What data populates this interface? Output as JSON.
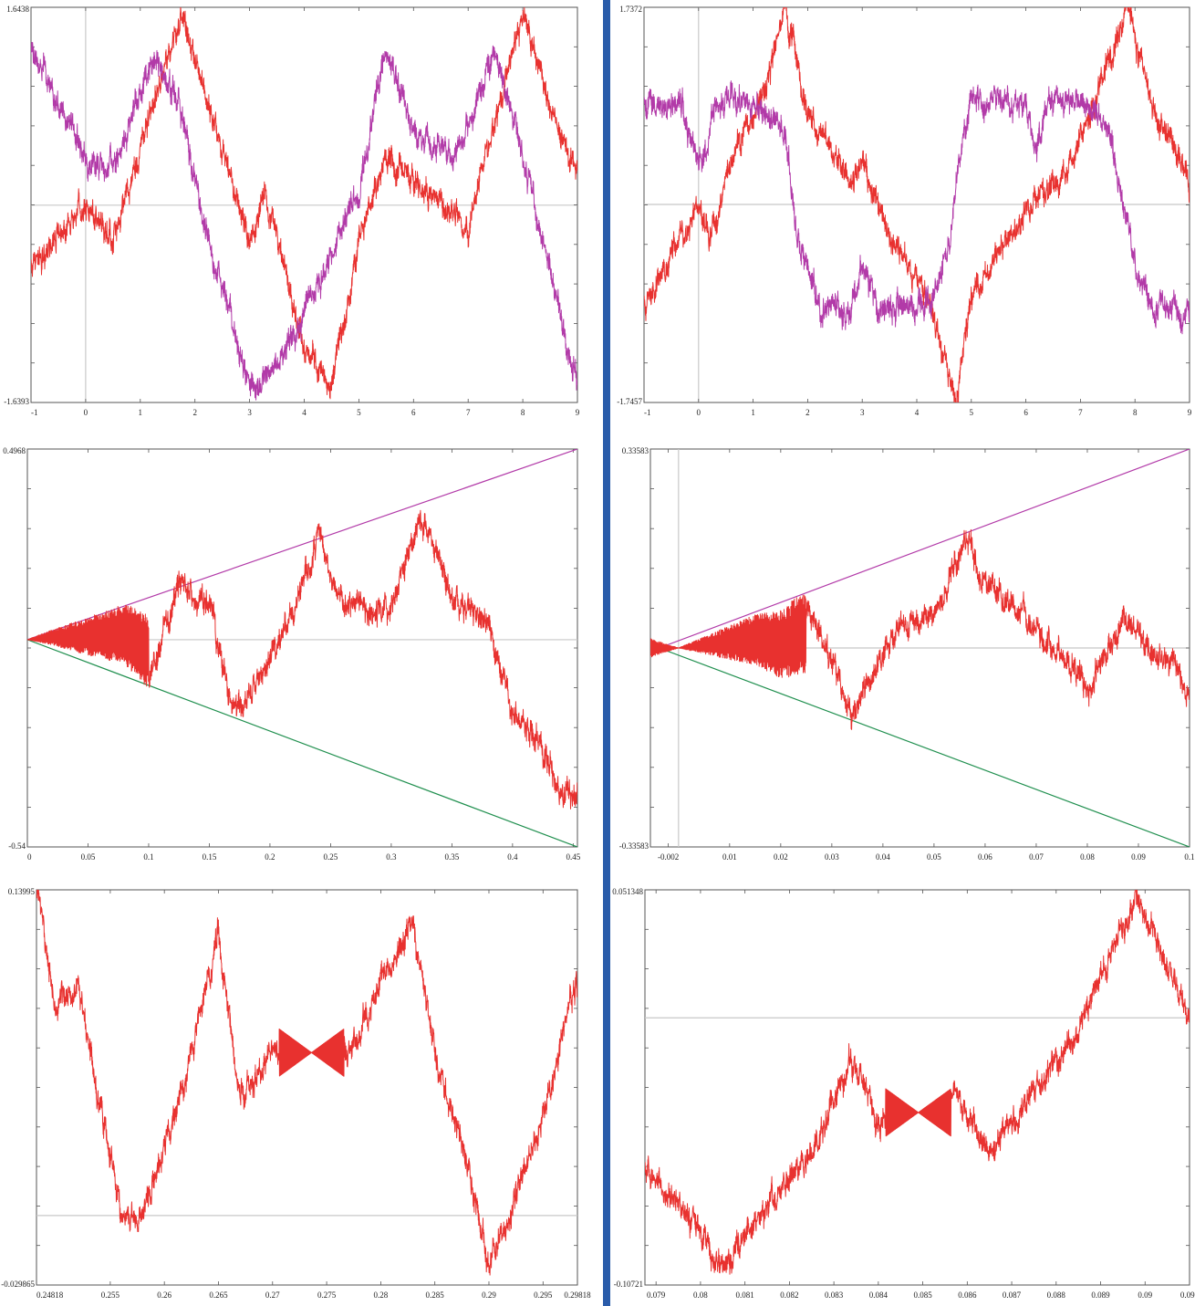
{
  "colors": {
    "accent": "#2a5caa",
    "series_red": "#e8312f",
    "series_magenta": "#b23aa8",
    "series_green": "#1f8f4e",
    "axis_zero": "#c8c8c8"
  },
  "chart_data": [
    {
      "id": "p1",
      "type": "line",
      "title": "",
      "xlabel": "",
      "ylabel": "",
      "xlim": [
        -1,
        9
      ],
      "ylim": [
        -1.6393,
        1.6438
      ],
      "x_ticks": [
        "-1",
        "0",
        "1",
        "2",
        "3",
        "4",
        "5",
        "6",
        "7",
        "8",
        "9"
      ],
      "y_top_label": "1.6438",
      "y_bottom_label": "-1.6393",
      "grid": false,
      "zero_lines": true,
      "series": [
        {
          "color": "#e8312f",
          "style": "fractal",
          "amplitude": 1.55,
          "fine_detail": 0.08,
          "points": [
            [
              -1,
              -0.5
            ],
            [
              0,
              0.0
            ],
            [
              0.5,
              -0.3
            ],
            [
              1.0,
              0.5
            ],
            [
              1.8,
              1.6
            ],
            [
              2.2,
              0.9
            ],
            [
              3.0,
              -0.3
            ],
            [
              3.3,
              0.1
            ],
            [
              4.0,
              -1.2
            ],
            [
              4.5,
              -1.5
            ],
            [
              5.0,
              -0.3
            ],
            [
              5.5,
              0.4
            ],
            [
              6.0,
              0.2
            ],
            [
              7.0,
              -0.2
            ],
            [
              8.0,
              1.6
            ],
            [
              8.5,
              0.8
            ],
            [
              9.0,
              0.3
            ]
          ]
        },
        {
          "color": "#b23aa8",
          "style": "fractal",
          "amplitude": 1.55,
          "fine_detail": 0.08,
          "points": [
            [
              -1,
              1.3
            ],
            [
              0,
              0.4
            ],
            [
              0.5,
              0.3
            ],
            [
              1.2,
              1.2
            ],
            [
              1.7,
              0.9
            ],
            [
              2.2,
              -0.2
            ],
            [
              3.0,
              -1.5
            ],
            [
              3.5,
              -1.3
            ],
            [
              4.0,
              -0.9
            ],
            [
              5.0,
              0.1
            ],
            [
              5.5,
              1.3
            ],
            [
              6.0,
              0.6
            ],
            [
              6.8,
              0.4
            ],
            [
              7.5,
              1.3
            ],
            [
              8.0,
              0.4
            ],
            [
              9.0,
              -1.5
            ]
          ]
        }
      ]
    },
    {
      "id": "p2",
      "type": "line",
      "title": "",
      "xlabel": "",
      "ylabel": "",
      "xlim": [
        -1,
        9
      ],
      "ylim": [
        -1.7457,
        1.7372
      ],
      "x_ticks": [
        "-1",
        "0",
        "1",
        "2",
        "3",
        "4",
        "5",
        "6",
        "7",
        "8",
        "9"
      ],
      "y_top_label": "1.7372",
      "y_bottom_label": "-1.7457",
      "grid": false,
      "zero_lines": true,
      "series": [
        {
          "color": "#e8312f",
          "style": "fractal",
          "amplitude": 1.7,
          "fine_detail": 0.07,
          "points": [
            [
              -1,
              -0.9
            ],
            [
              0,
              0.0
            ],
            [
              0.2,
              -0.3
            ],
            [
              0.7,
              0.5
            ],
            [
              1.2,
              1.0
            ],
            [
              1.57,
              1.72
            ],
            [
              2.0,
              0.8
            ],
            [
              2.8,
              0.2
            ],
            [
              3.0,
              0.4
            ],
            [
              3.5,
              -0.3
            ],
            [
              4.2,
              -0.8
            ],
            [
              4.71,
              -1.74
            ],
            [
              5.0,
              -0.8
            ],
            [
              5.8,
              -0.2
            ],
            [
              6.3,
              0.1
            ],
            [
              6.8,
              0.3
            ],
            [
              7.85,
              1.72
            ],
            [
              8.3,
              0.9
            ],
            [
              9.0,
              0.2
            ]
          ]
        },
        {
          "color": "#b23aa8",
          "style": "fractal",
          "amplitude": 1.0,
          "fine_detail": 0.05,
          "points": [
            [
              -1,
              0.9
            ],
            [
              -0.3,
              0.9
            ],
            [
              -0.1,
              0.5
            ],
            [
              0.1,
              0.4
            ],
            [
              0.3,
              0.9
            ],
            [
              1.0,
              0.9
            ],
            [
              1.6,
              0.6
            ],
            [
              1.8,
              -0.3
            ],
            [
              2.0,
              -0.5
            ],
            [
              2.2,
              -0.9
            ],
            [
              2.8,
              -0.95
            ],
            [
              3.0,
              -0.5
            ],
            [
              3.3,
              -0.95
            ],
            [
              4.0,
              -0.9
            ],
            [
              4.3,
              -0.8
            ],
            [
              4.6,
              -0.3
            ],
            [
              4.8,
              0.5
            ],
            [
              5.0,
              0.9
            ],
            [
              6.0,
              0.9
            ],
            [
              6.2,
              0.5
            ],
            [
              6.4,
              0.9
            ],
            [
              7.0,
              0.9
            ],
            [
              7.5,
              0.7
            ],
            [
              7.8,
              0.0
            ],
            [
              8.0,
              -0.5
            ],
            [
              8.3,
              -0.9
            ],
            [
              9.0,
              -0.95
            ]
          ]
        }
      ]
    },
    {
      "id": "p3",
      "type": "line",
      "title": "",
      "xlabel": "",
      "ylabel": "",
      "xlim": [
        0,
        0.4535
      ],
      "ylim": [
        -0.54,
        0.4968
      ],
      "x_ticks": [
        "0",
        "0.05",
        "0.1",
        "0.15",
        "0.2",
        "0.25",
        "0.3",
        "0.35",
        "0.4",
        "0.45"
      ],
      "y_top_label": "0.4968",
      "y_bottom_label": "-0.54",
      "grid": false,
      "zero_lines": true,
      "series": [
        {
          "color": "#b23aa8",
          "style": "straight",
          "points": [
            [
              0,
              0
            ],
            [
              0.4535,
              0.4968
            ]
          ]
        },
        {
          "color": "#1f8f4e",
          "style": "straight",
          "points": [
            [
              0,
              0
            ],
            [
              0.4535,
              -0.54
            ]
          ]
        },
        {
          "color": "#e8312f",
          "style": "fractal",
          "amplitude": 0.5,
          "fine_detail": 0.018,
          "envelope_slope": 1.1,
          "envelope_until": 0.1,
          "points": [
            [
              0,
              0
            ],
            [
              0.02,
              0.02
            ],
            [
              0.05,
              0.03
            ],
            [
              0.08,
              0.05
            ],
            [
              0.1,
              -0.1
            ],
            [
              0.125,
              0.14
            ],
            [
              0.15,
              0.1
            ],
            [
              0.17,
              -0.2
            ],
            [
              0.2,
              -0.05
            ],
            [
              0.22,
              0.08
            ],
            [
              0.24,
              0.28
            ],
            [
              0.255,
              0.12
            ],
            [
              0.28,
              0.07
            ],
            [
              0.3,
              0.09
            ],
            [
              0.325,
              0.33
            ],
            [
              0.35,
              0.12
            ],
            [
              0.38,
              0.05
            ],
            [
              0.4,
              -0.2
            ],
            [
              0.42,
              -0.25
            ],
            [
              0.44,
              -0.4
            ],
            [
              0.4535,
              -0.4
            ]
          ]
        }
      ]
    },
    {
      "id": "p4",
      "type": "line",
      "title": "",
      "xlabel": "",
      "ylabel": "",
      "xlim": [
        -0.0055,
        0.1
      ],
      "ylim": [
        -0.33583,
        0.33583
      ],
      "x_ticks": [
        "-0.002",
        "0.01",
        "0.02",
        "0.03",
        "0.04",
        "0.05",
        "0.06",
        "0.07",
        "0.08",
        "0.09",
        "0.1"
      ],
      "y_top_label": "0.33583",
      "y_bottom_label": "-0.33583",
      "grid": false,
      "zero_lines": true,
      "series": [
        {
          "color": "#b23aa8",
          "style": "straight",
          "points": [
            [
              -0.0055,
              -0.0055
            ],
            [
              0.1,
              0.33583
            ]
          ]
        },
        {
          "color": "#1f8f4e",
          "style": "straight",
          "points": [
            [
              -0.0055,
              0.0055
            ],
            [
              0.1,
              -0.33583
            ]
          ]
        },
        {
          "color": "#e8312f",
          "style": "fractal",
          "amplitude": 0.35,
          "fine_detail": 0.007,
          "envelope_slope": 3.2,
          "envelope_until": 0.025,
          "points": [
            [
              -0.0055,
              0.0
            ],
            [
              0.0,
              0.0
            ],
            [
              0.01,
              0.03
            ],
            [
              0.015,
              0.05
            ],
            [
              0.02,
              0.02
            ],
            [
              0.024,
              0.08
            ],
            [
              0.03,
              -0.02
            ],
            [
              0.034,
              -0.11
            ],
            [
              0.04,
              -0.01
            ],
            [
              0.044,
              0.04
            ],
            [
              0.05,
              0.06
            ],
            [
              0.0565,
              0.18
            ],
            [
              0.06,
              0.11
            ],
            [
              0.07,
              0.03
            ],
            [
              0.075,
              -0.01
            ],
            [
              0.08,
              -0.07
            ],
            [
              0.085,
              0.01
            ],
            [
              0.0885,
              0.05
            ],
            [
              0.093,
              -0.02
            ],
            [
              0.097,
              -0.03
            ],
            [
              0.1,
              -0.08
            ]
          ]
        }
      ]
    },
    {
      "id": "p5",
      "type": "line",
      "title": "",
      "xlabel": "",
      "ylabel": "",
      "xlim": [
        0.24818,
        0.29818
      ],
      "ylim": [
        -0.029865,
        0.13995
      ],
      "x_ticks": [
        "0.24818",
        "0.255",
        "0.26",
        "0.265",
        "0.27",
        "0.275",
        "0.28",
        "0.285",
        "0.29",
        "0.295",
        "0.29818"
      ],
      "y_top_label": "0.13995",
      "y_bottom_label": "-0.029865",
      "grid": false,
      "zero_lines": true,
      "series": [
        {
          "color": "#e8312f",
          "style": "fractal",
          "amplitude": 0.13,
          "fine_detail": 0.0045,
          "pinch_x": 0.2736,
          "pinch_y": 0.07,
          "points": [
            [
              0.24818,
              0.14
            ],
            [
              0.25,
              0.09
            ],
            [
              0.252,
              0.1
            ],
            [
              0.254,
              0.05
            ],
            [
              0.256,
              0.0
            ],
            [
              0.258,
              0.0
            ],
            [
              0.26,
              0.03
            ],
            [
              0.262,
              0.06
            ],
            [
              0.264,
              0.1
            ],
            [
              0.265,
              0.12
            ],
            [
              0.267,
              0.05
            ],
            [
              0.27,
              0.07
            ],
            [
              0.2736,
              0.07
            ],
            [
              0.277,
              0.07
            ],
            [
              0.281,
              0.11
            ],
            [
              0.283,
              0.125
            ],
            [
              0.285,
              0.07
            ],
            [
              0.287,
              0.04
            ],
            [
              0.29,
              -0.02
            ],
            [
              0.292,
              0.0
            ],
            [
              0.294,
              0.03
            ],
            [
              0.296,
              0.06
            ],
            [
              0.298,
              0.1
            ]
          ]
        }
      ]
    },
    {
      "id": "p6",
      "type": "line",
      "title": "",
      "xlabel": "",
      "ylabel": "",
      "xlim": [
        0.07875,
        0.091
      ],
      "ylim": [
        -0.10721,
        0.051348
      ],
      "x_ticks": [
        "0.079",
        "0.08",
        "0.081",
        "0.082",
        "0.083",
        "0.084",
        "0.085",
        "0.086",
        "0.087",
        "0.088",
        "0.089",
        "0.09",
        "0.091"
      ],
      "y_top_label": "0.051348",
      "y_bottom_label": "-0.10721",
      "grid": false,
      "zero_lines": true,
      "series": [
        {
          "color": "#e8312f",
          "style": "fractal",
          "amplitude": 0.09,
          "fine_detail": 0.0028,
          "pinch_x": 0.0849,
          "pinch_y": -0.038,
          "points": [
            [
              0.07875,
              -0.06
            ],
            [
              0.0795,
              -0.075
            ],
            [
              0.0805,
              -0.1
            ],
            [
              0.0815,
              -0.075
            ],
            [
              0.0825,
              -0.055
            ],
            [
              0.0834,
              -0.017
            ],
            [
              0.084,
              -0.04
            ],
            [
              0.0849,
              -0.038
            ],
            [
              0.0857,
              -0.03
            ],
            [
              0.0865,
              -0.055
            ],
            [
              0.0875,
              -0.028
            ],
            [
              0.0885,
              -0.005
            ],
            [
              0.0898,
              0.049
            ],
            [
              0.0905,
              0.02
            ],
            [
              0.091,
              0.0
            ]
          ]
        }
      ]
    }
  ]
}
